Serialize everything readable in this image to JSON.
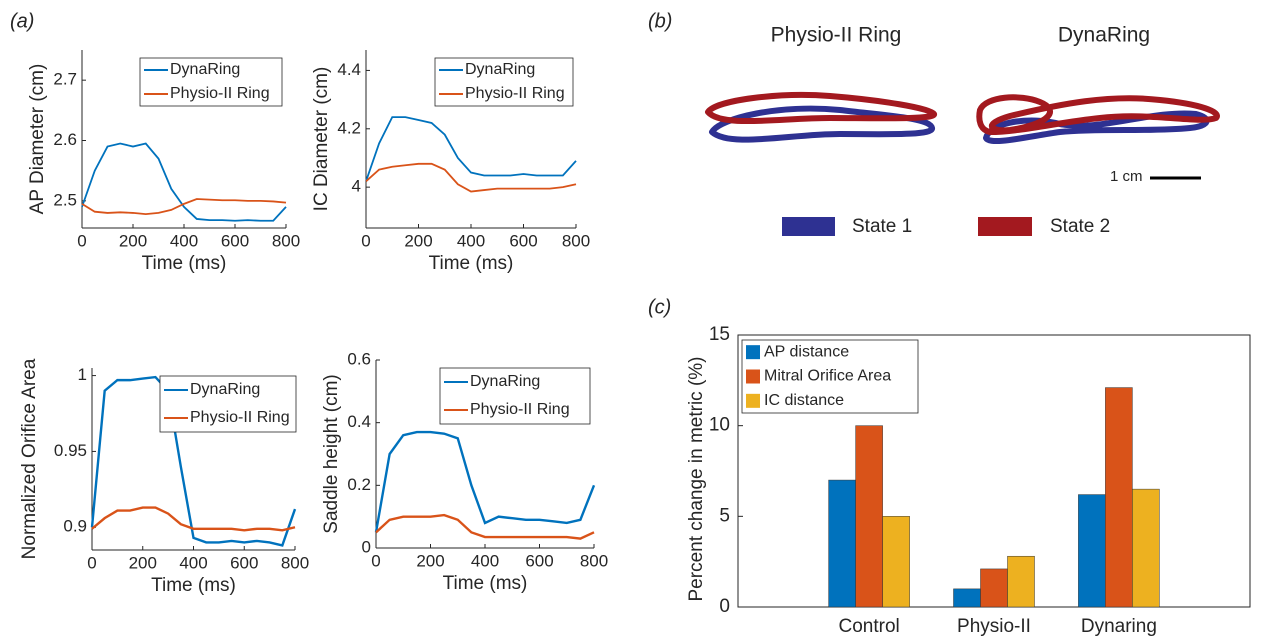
{
  "panel_labels": [
    "(a)",
    "(b)",
    "(c)"
  ],
  "ring_panel": {
    "titles": [
      "Physio-II Ring",
      "DynaRing"
    ],
    "scale_label": "1 cm",
    "legend": [
      {
        "name": "State 1",
        "color": "#2e3192"
      },
      {
        "name": "State 2",
        "color": "#a3191f"
      }
    ]
  },
  "chart_data": [
    {
      "type": "line",
      "xlabel": "Time (ms)",
      "ylabel": "AP Diameter (cm)",
      "x": [
        0,
        50,
        100,
        150,
        200,
        250,
        300,
        350,
        400,
        450,
        500,
        550,
        600,
        650,
        700,
        750,
        800
      ],
      "xlim": [
        0,
        800
      ],
      "xticks": [
        0,
        200,
        400,
        600,
        800
      ],
      "ylim": [
        2.455,
        2.75
      ],
      "yticks": [
        2.5,
        2.6,
        2.7
      ],
      "series": [
        {
          "name": "DynaRing",
          "color": "#0072bd",
          "values": [
            2.49,
            2.55,
            2.59,
            2.595,
            2.59,
            2.595,
            2.57,
            2.52,
            2.49,
            2.47,
            2.468,
            2.468,
            2.467,
            2.468,
            2.467,
            2.467,
            2.49
          ]
        },
        {
          "name": "Physio-II Ring",
          "color": "#d95319",
          "values": [
            2.495,
            2.482,
            2.48,
            2.481,
            2.48,
            2.478,
            2.48,
            2.485,
            2.495,
            2.503,
            2.502,
            2.501,
            2.501,
            2.5,
            2.5,
            2.499,
            2.497
          ]
        }
      ]
    },
    {
      "type": "line",
      "xlabel": "Time (ms)",
      "ylabel": "IC Diameter (cm)",
      "x": [
        0,
        50,
        100,
        150,
        200,
        250,
        300,
        350,
        400,
        450,
        500,
        550,
        600,
        650,
        700,
        750,
        800
      ],
      "xlim": [
        0,
        800
      ],
      "xticks": [
        0,
        200,
        400,
        600,
        800
      ],
      "ylim": [
        3.86,
        4.47
      ],
      "yticks": [
        4,
        4.2,
        4.4
      ],
      "series": [
        {
          "name": "DynaRing",
          "color": "#0072bd",
          "values": [
            4.02,
            4.15,
            4.24,
            4.24,
            4.23,
            4.22,
            4.18,
            4.1,
            4.05,
            4.04,
            4.04,
            4.04,
            4.045,
            4.04,
            4.04,
            4.04,
            4.09
          ]
        },
        {
          "name": "Physio-II Ring",
          "color": "#d95319",
          "values": [
            4.02,
            4.06,
            4.07,
            4.075,
            4.08,
            4.08,
            4.06,
            4.01,
            3.985,
            3.99,
            3.995,
            3.995,
            3.995,
            3.995,
            3.995,
            4.0,
            4.01
          ]
        }
      ]
    },
    {
      "type": "line",
      "xlabel": "Time (ms)",
      "ylabel": "Normalized Orifice Area",
      "x": [
        0,
        50,
        100,
        150,
        200,
        250,
        300,
        350,
        400,
        450,
        500,
        550,
        600,
        650,
        700,
        750,
        800
      ],
      "xlim": [
        0,
        800
      ],
      "xticks": [
        0,
        200,
        400,
        600,
        800
      ],
      "ylim": [
        0.885,
        1.005
      ],
      "yticks": [
        0.9,
        0.95,
        1
      ],
      "series": [
        {
          "name": "DynaRing",
          "color": "#0072bd",
          "values": [
            0.9,
            0.99,
            0.997,
            0.997,
            0.998,
            0.999,
            0.99,
            0.94,
            0.893,
            0.89,
            0.89,
            0.891,
            0.89,
            0.891,
            0.89,
            0.888,
            0.912
          ]
        },
        {
          "name": "Physio-II Ring",
          "color": "#d95319",
          "values": [
            0.899,
            0.906,
            0.911,
            0.911,
            0.913,
            0.913,
            0.909,
            0.902,
            0.899,
            0.899,
            0.899,
            0.899,
            0.898,
            0.899,
            0.899,
            0.898,
            0.9
          ]
        }
      ]
    },
    {
      "type": "line",
      "xlabel": "Time (ms)",
      "ylabel": "Saddle height (cm)",
      "x": [
        0,
        50,
        100,
        150,
        200,
        250,
        300,
        350,
        400,
        450,
        500,
        550,
        600,
        650,
        700,
        750,
        800
      ],
      "xlim": [
        0,
        800
      ],
      "xticks": [
        0,
        200,
        400,
        600,
        800
      ],
      "ylim": [
        0,
        0.6
      ],
      "yticks": [
        0,
        0.2,
        0.4,
        0.6
      ],
      "series": [
        {
          "name": "DynaRing",
          "color": "#0072bd",
          "values": [
            0.05,
            0.3,
            0.36,
            0.37,
            0.37,
            0.365,
            0.35,
            0.2,
            0.08,
            0.1,
            0.095,
            0.09,
            0.09,
            0.085,
            0.08,
            0.09,
            0.2
          ]
        },
        {
          "name": "Physio-II Ring",
          "color": "#d95319",
          "values": [
            0.05,
            0.09,
            0.1,
            0.1,
            0.1,
            0.105,
            0.09,
            0.05,
            0.035,
            0.035,
            0.035,
            0.035,
            0.035,
            0.035,
            0.035,
            0.03,
            0.05
          ]
        }
      ]
    },
    {
      "type": "bar",
      "ylabel": "Percent change in metric (%)",
      "categories": [
        "Control",
        "Physio-II",
        "Dynaring"
      ],
      "ylim": [
        0,
        15
      ],
      "yticks": [
        0,
        5,
        10,
        15
      ],
      "series": [
        {
          "name": "AP distance",
          "color": "#0072bd",
          "values": [
            7,
            1,
            6.2
          ]
        },
        {
          "name": "Mitral Orifice Area",
          "color": "#d95319",
          "values": [
            10,
            2.1,
            12.1
          ]
        },
        {
          "name": "IC distance",
          "color": "#edb120",
          "values": [
            5,
            2.8,
            6.5
          ]
        }
      ]
    }
  ]
}
